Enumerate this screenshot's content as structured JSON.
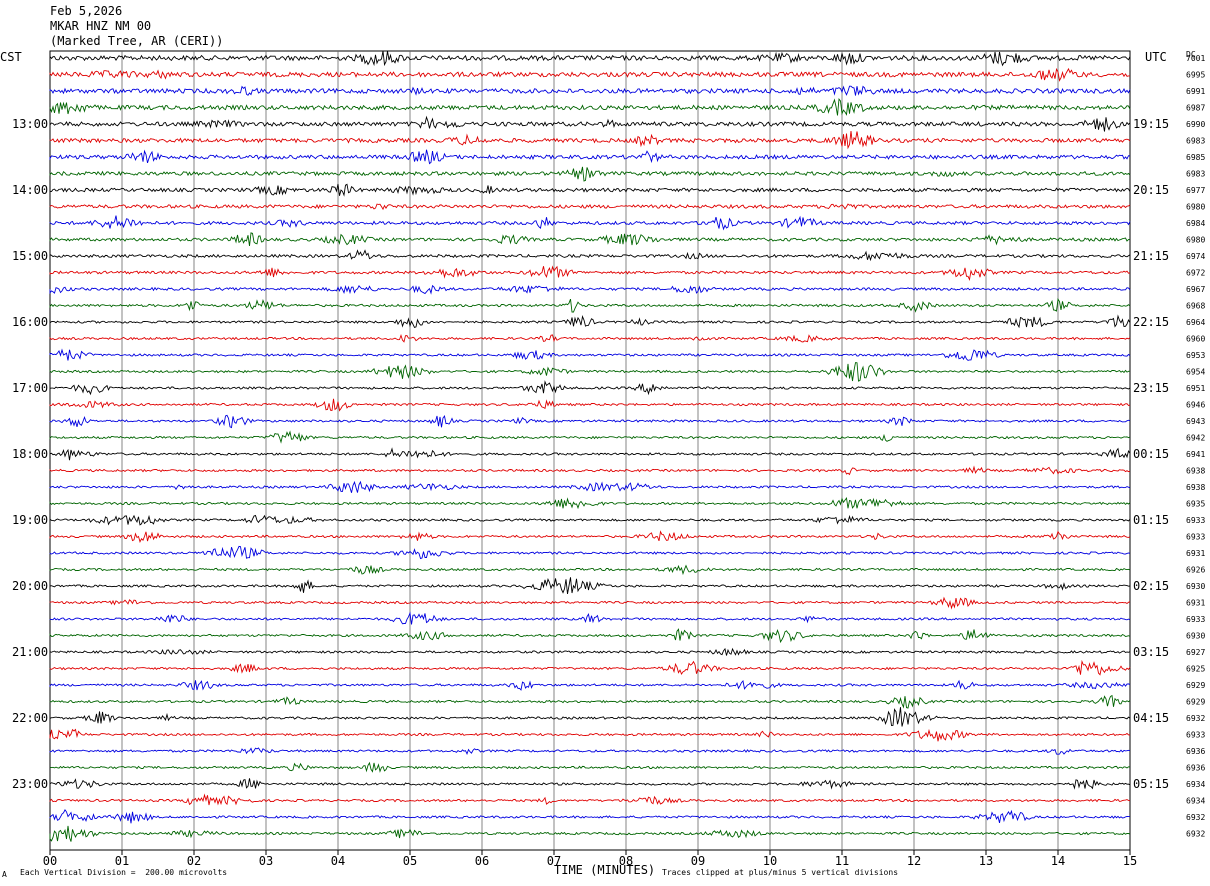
{
  "header": {
    "date": "Feb 5,2026",
    "station": "MKAR HNZ NM 00",
    "location": "(Marked Tree, AR (CERI))"
  },
  "labels": {
    "left_tz": "CST",
    "right_tz": "UTC",
    "dc": "DC"
  },
  "footer": {
    "scale_note": "Each Vertical Division =  200.00 microvolts",
    "xlabel": "TIME (MINUTES)",
    "clip_note": "Traces clipped at plus/minus 5 vertical divisions",
    "corner_mark": "A"
  },
  "chart_data": {
    "type": "line",
    "title": "MKAR HNZ NM 00",
    "xlabel": "TIME (MINUTES)",
    "x_range": [
      0,
      15
    ],
    "x_ticks": [
      "00",
      "01",
      "02",
      "03",
      "04",
      "05",
      "06",
      "07",
      "08",
      "09",
      "10",
      "11",
      "12",
      "13",
      "14",
      "15"
    ],
    "trace_colors": [
      "#000000",
      "#e00000",
      "#0000e0",
      "#006400"
    ],
    "left_hour_labels": [
      "13:00",
      "14:00",
      "15:00",
      "16:00",
      "17:00",
      "18:00",
      "19:00",
      "20:00",
      "21:00",
      "22:00",
      "23:00"
    ],
    "right_hour_labels": [
      "19:15",
      "20:15",
      "21:15",
      "22:15",
      "23:15",
      "00:15",
      "01:15",
      "02:15",
      "03:15",
      "04:15",
      "05:15"
    ],
    "dc_offsets": [
      "7001",
      "6995",
      "6991",
      "6987",
      "6990",
      "6983",
      "6985",
      "6983",
      "6977",
      "6980",
      "6984",
      "6980",
      "6974",
      "6972",
      "6967",
      "6968",
      "6964",
      "6960",
      "6953",
      "6954",
      "6951",
      "6946",
      "6943",
      "6942",
      "6941",
      "6938",
      "6938",
      "6935",
      "6933",
      "6933",
      "6931",
      "6926",
      "6930",
      "6931",
      "6933",
      "6930",
      "6927",
      "6925",
      "6929",
      "6929",
      "6932",
      "6933",
      "6936",
      "6936",
      "6934",
      "6934",
      "6932",
      "6932"
    ],
    "grid": true
  }
}
